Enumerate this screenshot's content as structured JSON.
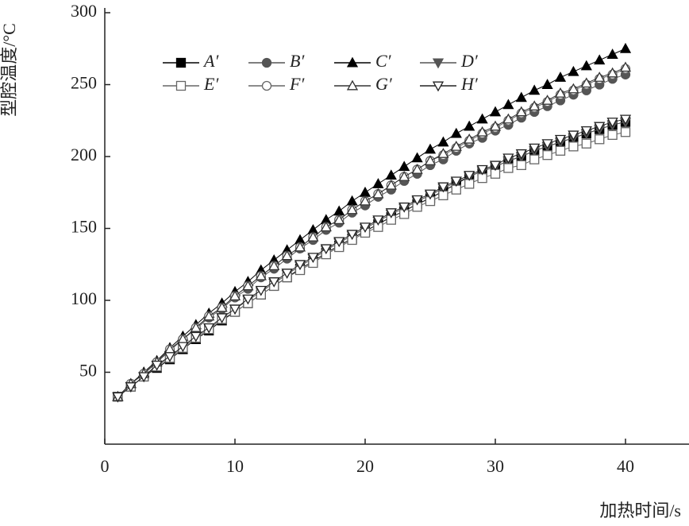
{
  "chart_data": {
    "type": "line",
    "xlabel": "加热时间/s",
    "ylabel": "型腔温度/°C",
    "x": [
      1,
      2,
      3,
      4,
      5,
      6,
      7,
      8,
      9,
      10,
      11,
      12,
      13,
      14,
      15,
      16,
      17,
      18,
      19,
      20,
      21,
      22,
      23,
      24,
      25,
      26,
      27,
      28,
      29,
      30,
      31,
      32,
      33,
      34,
      35,
      36,
      37,
      38,
      39,
      40
    ],
    "series": [
      {
        "name": "A′",
        "color": "#000000",
        "marker": "square",
        "filled": true,
        "values": [
          33,
          40,
          47,
          53,
          59,
          66,
          73,
          79,
          86,
          92,
          98,
          104,
          110,
          116,
          122,
          127,
          133,
          138,
          143,
          148,
          153,
          158,
          162,
          167,
          171,
          176,
          181,
          186,
          190,
          193,
          197,
          200,
          204,
          207,
          210,
          213,
          216,
          219,
          222,
          224
        ]
      },
      {
        "name": "B′",
        "color": "#555555",
        "marker": "circle",
        "filled": true,
        "values": [
          33,
          42,
          49,
          57,
          65,
          73,
          80,
          88,
          94,
          102,
          108,
          116,
          122,
          129,
          136,
          142,
          149,
          154,
          161,
          166,
          172,
          177,
          183,
          188,
          194,
          198,
          204,
          209,
          213,
          218,
          222,
          227,
          231,
          235,
          239,
          243,
          246,
          250,
          254,
          257
        ]
      },
      {
        "name": "C′",
        "color": "#000000",
        "marker": "triangle",
        "filled": true,
        "values": [
          33,
          42,
          50,
          58,
          67,
          75,
          83,
          91,
          98,
          106,
          113,
          121,
          128,
          135,
          142,
          149,
          156,
          162,
          169,
          175,
          181,
          187,
          193,
          199,
          205,
          210,
          216,
          221,
          226,
          231,
          236,
          241,
          246,
          250,
          255,
          259,
          263,
          267,
          271,
          275
        ]
      },
      {
        "name": "D′",
        "color": "#555555",
        "marker": "triangle-down",
        "filled": true,
        "values": [
          33,
          40,
          47,
          55,
          61,
          68,
          75,
          81,
          88,
          94,
          100,
          106,
          112,
          118,
          124,
          129,
          135,
          140,
          145,
          150,
          155,
          160,
          164,
          169,
          173,
          178,
          182,
          186,
          190,
          193,
          197,
          200,
          204,
          207,
          210,
          213,
          216,
          219,
          222,
          224
        ]
      },
      {
        "name": "E′",
        "color": "#666666",
        "marker": "square",
        "filled": false,
        "values": [
          33,
          40,
          47,
          54,
          60,
          67,
          74,
          80,
          87,
          92,
          98,
          104,
          110,
          116,
          121,
          126,
          132,
          137,
          142,
          147,
          151,
          156,
          160,
          165,
          169,
          173,
          177,
          181,
          185,
          188,
          192,
          194,
          198,
          201,
          204,
          207,
          209,
          212,
          215,
          217
        ]
      },
      {
        "name": "F′",
        "color": "#666666",
        "marker": "circle",
        "filled": false,
        "values": [
          33,
          42,
          49,
          57,
          66,
          73,
          81,
          89,
          95,
          103,
          110,
          117,
          124,
          131,
          137,
          144,
          151,
          156,
          163,
          169,
          174,
          180,
          186,
          191,
          197,
          201,
          206,
          211,
          216,
          220,
          225,
          230,
          234,
          238,
          243,
          246,
          250,
          254,
          257,
          261
        ]
      },
      {
        "name": "G′",
        "color": "#333333",
        "marker": "triangle",
        "filled": false,
        "values": [
          33,
          42,
          49,
          57,
          66,
          73,
          81,
          89,
          95,
          103,
          110,
          117,
          124,
          131,
          137,
          144,
          151,
          156,
          163,
          169,
          174,
          180,
          186,
          191,
          197,
          202,
          207,
          212,
          217,
          221,
          226,
          231,
          235,
          239,
          244,
          247,
          251,
          255,
          258,
          262
        ]
      },
      {
        "name": "H′",
        "color": "#222222",
        "marker": "triangle-down",
        "filled": false,
        "values": [
          33,
          40,
          47,
          55,
          61,
          68,
          75,
          81,
          88,
          94,
          101,
          107,
          113,
          119,
          125,
          130,
          136,
          141,
          146,
          151,
          156,
          161,
          165,
          170,
          174,
          179,
          183,
          187,
          191,
          194,
          199,
          202,
          206,
          209,
          212,
          215,
          218,
          221,
          224,
          226
        ]
      }
    ],
    "xlim": [
      0,
      45
    ],
    "xticks": [
      0,
      10,
      20,
      30,
      40
    ],
    "ylim": [
      0,
      300
    ],
    "yticks": [
      50,
      100,
      150,
      200,
      250,
      300
    ],
    "legend": "upper-left",
    "legend_columns": 4
  }
}
